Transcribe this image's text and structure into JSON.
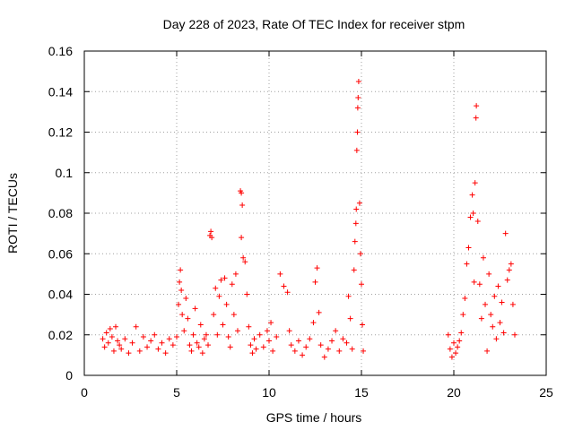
{
  "chart_data": {
    "type": "scatter",
    "title": "Day 228 of 2023, Rate Of TEC Index for receiver stpm",
    "xlabel": "GPS time / hours",
    "ylabel": "ROTI / TECUs",
    "xlim": [
      0,
      25
    ],
    "ylim": [
      0,
      0.16
    ],
    "x_ticks": [
      0,
      5,
      10,
      15,
      20,
      25
    ],
    "x_tick_labels": [
      "0",
      "5",
      "10",
      "15",
      "20",
      "25"
    ],
    "y_ticks": [
      0,
      0.02,
      0.04,
      0.06,
      0.08,
      0.1,
      0.12,
      0.14,
      0.16
    ],
    "y_tick_labels": [
      "0",
      "0.02",
      "0.04",
      "0.06",
      "0.08",
      "0.1",
      "0.12",
      "0.14",
      "0.16"
    ],
    "grid": true,
    "marker": "plus",
    "marker_color": "#ff0000",
    "series": [
      {
        "points": [
          [
            1.0,
            0.018
          ],
          [
            1.1,
            0.014
          ],
          [
            1.2,
            0.021
          ],
          [
            1.3,
            0.016
          ],
          [
            1.4,
            0.023
          ],
          [
            1.5,
            0.019
          ],
          [
            1.6,
            0.012
          ],
          [
            1.7,
            0.024
          ],
          [
            1.8,
            0.017
          ],
          [
            1.9,
            0.015
          ],
          [
            2.0,
            0.013
          ],
          [
            2.2,
            0.018
          ],
          [
            2.4,
            0.011
          ],
          [
            2.6,
            0.016
          ],
          [
            2.8,
            0.024
          ],
          [
            3.0,
            0.012
          ],
          [
            3.2,
            0.019
          ],
          [
            3.4,
            0.014
          ],
          [
            3.6,
            0.017
          ],
          [
            3.8,
            0.02
          ],
          [
            4.0,
            0.013
          ],
          [
            4.2,
            0.016
          ],
          [
            4.4,
            0.011
          ],
          [
            4.6,
            0.018
          ],
          [
            4.8,
            0.015
          ],
          [
            5.0,
            0.019
          ],
          [
            5.1,
            0.035
          ],
          [
            5.15,
            0.046
          ],
          [
            5.2,
            0.052
          ],
          [
            5.25,
            0.042
          ],
          [
            5.3,
            0.03
          ],
          [
            5.4,
            0.022
          ],
          [
            5.5,
            0.038
          ],
          [
            5.6,
            0.028
          ],
          [
            5.7,
            0.015
          ],
          [
            5.8,
            0.012
          ],
          [
            5.9,
            0.02
          ],
          [
            6.0,
            0.033
          ],
          [
            6.1,
            0.016
          ],
          [
            6.2,
            0.014
          ],
          [
            6.3,
            0.025
          ],
          [
            6.4,
            0.011
          ],
          [
            6.5,
            0.018
          ],
          [
            6.6,
            0.02
          ],
          [
            6.7,
            0.015
          ],
          [
            6.8,
            0.069
          ],
          [
            6.85,
            0.071
          ],
          [
            6.9,
            0.068
          ],
          [
            7.0,
            0.03
          ],
          [
            7.1,
            0.043
          ],
          [
            7.2,
            0.02
          ],
          [
            7.3,
            0.039
          ],
          [
            7.4,
            0.047
          ],
          [
            7.5,
            0.025
          ],
          [
            7.6,
            0.048
          ],
          [
            7.7,
            0.035
          ],
          [
            7.8,
            0.019
          ],
          [
            7.9,
            0.014
          ],
          [
            8.0,
            0.045
          ],
          [
            8.1,
            0.03
          ],
          [
            8.2,
            0.05
          ],
          [
            8.3,
            0.022
          ],
          [
            8.45,
            0.091
          ],
          [
            8.5,
            0.09
          ],
          [
            8.55,
            0.084
          ],
          [
            8.5,
            0.068
          ],
          [
            8.6,
            0.058
          ],
          [
            8.7,
            0.056
          ],
          [
            8.8,
            0.04
          ],
          [
            8.9,
            0.024
          ],
          [
            9.0,
            0.015
          ],
          [
            9.1,
            0.011
          ],
          [
            9.2,
            0.018
          ],
          [
            9.3,
            0.013
          ],
          [
            9.5,
            0.02
          ],
          [
            9.7,
            0.014
          ],
          [
            9.9,
            0.022
          ],
          [
            10.0,
            0.017
          ],
          [
            10.1,
            0.026
          ],
          [
            10.2,
            0.012
          ],
          [
            10.4,
            0.019
          ],
          [
            10.6,
            0.05
          ],
          [
            10.8,
            0.044
          ],
          [
            11.0,
            0.041
          ],
          [
            11.1,
            0.022
          ],
          [
            11.2,
            0.015
          ],
          [
            11.4,
            0.012
          ],
          [
            11.6,
            0.017
          ],
          [
            11.8,
            0.01
          ],
          [
            12.0,
            0.014
          ],
          [
            12.2,
            0.018
          ],
          [
            12.4,
            0.026
          ],
          [
            12.5,
            0.046
          ],
          [
            12.6,
            0.053
          ],
          [
            12.7,
            0.031
          ],
          [
            12.8,
            0.015
          ],
          [
            13.0,
            0.009
          ],
          [
            13.2,
            0.013
          ],
          [
            13.4,
            0.017
          ],
          [
            13.6,
            0.022
          ],
          [
            13.8,
            0.012
          ],
          [
            14.0,
            0.018
          ],
          [
            14.2,
            0.016
          ],
          [
            14.3,
            0.039
          ],
          [
            14.4,
            0.028
          ],
          [
            14.5,
            0.013
          ],
          [
            14.6,
            0.052
          ],
          [
            14.65,
            0.066
          ],
          [
            14.7,
            0.075
          ],
          [
            14.72,
            0.082
          ],
          [
            14.75,
            0.111
          ],
          [
            14.78,
            0.12
          ],
          [
            14.8,
            0.132
          ],
          [
            14.82,
            0.137
          ],
          [
            14.85,
            0.145
          ],
          [
            14.9,
            0.085
          ],
          [
            14.95,
            0.06
          ],
          [
            15.0,
            0.045
          ],
          [
            15.05,
            0.025
          ],
          [
            15.1,
            0.012
          ],
          [
            19.7,
            0.02
          ],
          [
            19.8,
            0.013
          ],
          [
            19.9,
            0.009
          ],
          [
            20.0,
            0.016
          ],
          [
            20.1,
            0.011
          ],
          [
            20.2,
            0.014
          ],
          [
            20.3,
            0.017
          ],
          [
            20.4,
            0.021
          ],
          [
            20.5,
            0.03
          ],
          [
            20.6,
            0.038
          ],
          [
            20.7,
            0.055
          ],
          [
            20.8,
            0.063
          ],
          [
            20.9,
            0.078
          ],
          [
            21.0,
            0.089
          ],
          [
            21.05,
            0.08
          ],
          [
            21.1,
            0.046
          ],
          [
            21.15,
            0.095
          ],
          [
            21.2,
            0.127
          ],
          [
            21.22,
            0.133
          ],
          [
            21.3,
            0.076
          ],
          [
            21.4,
            0.045
          ],
          [
            21.5,
            0.028
          ],
          [
            21.6,
            0.058
          ],
          [
            21.7,
            0.035
          ],
          [
            21.8,
            0.012
          ],
          [
            21.9,
            0.05
          ],
          [
            22.0,
            0.03
          ],
          [
            22.1,
            0.024
          ],
          [
            22.2,
            0.039
          ],
          [
            22.3,
            0.018
          ],
          [
            22.4,
            0.044
          ],
          [
            22.5,
            0.026
          ],
          [
            22.6,
            0.036
          ],
          [
            22.7,
            0.021
          ],
          [
            22.8,
            0.07
          ],
          [
            22.9,
            0.047
          ],
          [
            23.0,
            0.052
          ],
          [
            23.1,
            0.055
          ],
          [
            23.2,
            0.035
          ],
          [
            23.3,
            0.02
          ]
        ]
      }
    ]
  }
}
